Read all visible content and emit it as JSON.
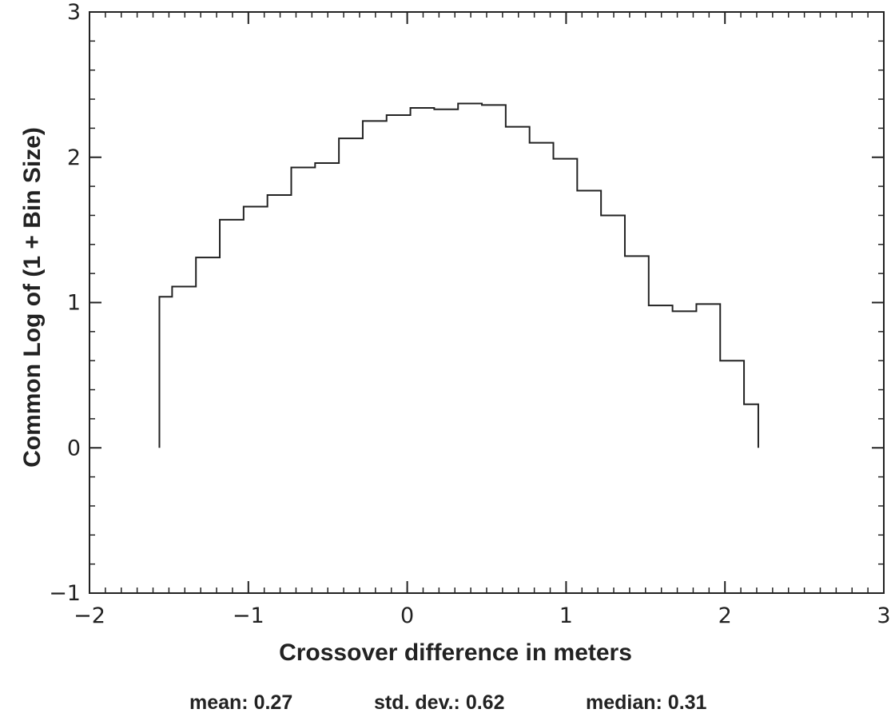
{
  "chart_data": {
    "type": "step",
    "xlabel": "Crossover difference in meters",
    "ylabel": "Common Log of (1 + Bin Size)",
    "xlim": [
      -2,
      3
    ],
    "ylim": [
      -1,
      3
    ],
    "xticks": [
      -2,
      -1,
      0,
      1,
      2,
      3
    ],
    "yticks": [
      -1,
      0,
      1,
      2,
      3
    ],
    "xtick_labels": [
      "−2",
      "−1",
      "0",
      "1",
      "2",
      "3"
    ],
    "ytick_labels": [
      "−1",
      "0",
      "1",
      "2",
      "3"
    ],
    "x_minor_step": 0.1,
    "y_minor_step": 0.2,
    "grid": false,
    "bin_edges": [
      -1.56,
      -1.48,
      -1.33,
      -1.18,
      -1.03,
      -0.88,
      -0.73,
      -0.58,
      -0.43,
      -0.28,
      -0.13,
      0.02,
      0.17,
      0.32,
      0.47,
      0.62,
      0.77,
      0.92,
      1.07,
      1.22,
      1.37,
      1.52,
      1.67,
      1.82,
      1.97,
      2.12,
      2.21
    ],
    "values": [
      1.04,
      1.11,
      1.31,
      1.57,
      1.66,
      1.74,
      1.93,
      1.96,
      2.13,
      2.25,
      2.29,
      2.34,
      2.33,
      2.37,
      2.36,
      2.21,
      2.1,
      1.99,
      1.77,
      1.6,
      1.32,
      0.98,
      0.94,
      0.99,
      0.6,
      0.3
    ],
    "stats": {
      "mean": "mean: 0.27",
      "std_dev": "std. dev.: 0.62",
      "median": "median: 0.31"
    }
  }
}
